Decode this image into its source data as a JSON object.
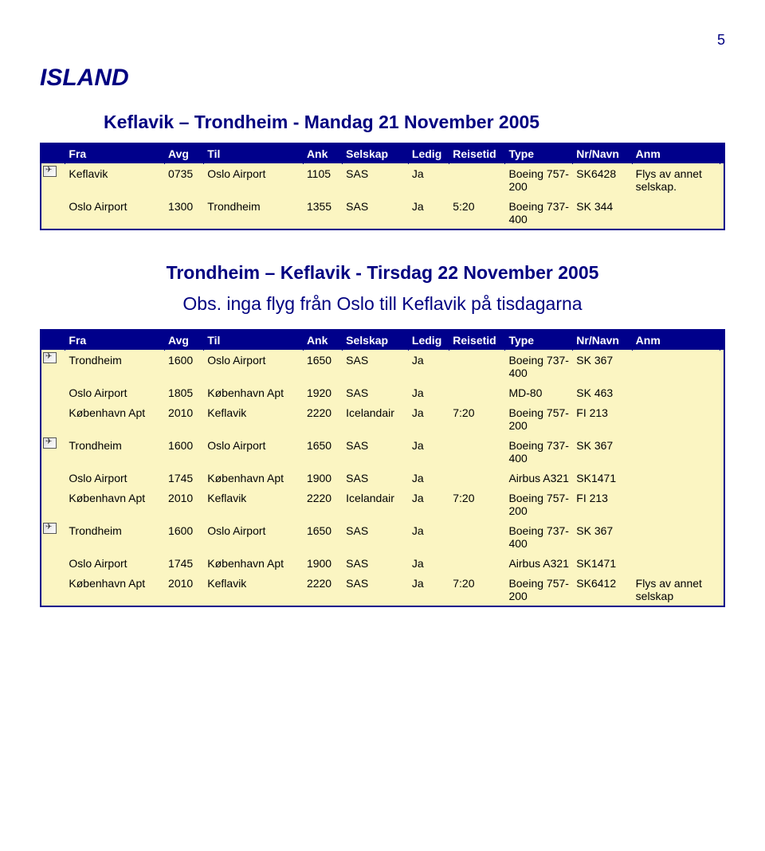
{
  "page_number": "5",
  "section_title": "ISLAND",
  "block1": {
    "route_title": "Keflavik – Trondheim - Mandag 21 November 2005",
    "headers": [
      "",
      "Fra",
      "Avg",
      "Til",
      "Ank",
      "Selskap",
      "Ledig",
      "Reisetid",
      "Type",
      "Nr/Navn",
      "Anm",
      ""
    ],
    "rows": [
      {
        "icon": true,
        "fra": "Keflavik",
        "avg": "0735",
        "til": "Oslo Airport",
        "ank": "1105",
        "selskap": "SAS",
        "ledig": "Ja",
        "reisetid": "",
        "type": "Boeing 757-200",
        "nr": "SK6428",
        "anm": "Flys av annet selskap."
      },
      {
        "icon": false,
        "fra": "Oslo Airport",
        "avg": "1300",
        "til": "Trondheim",
        "ank": "1355",
        "selskap": "SAS",
        "ledig": "Ja",
        "reisetid": "5:20",
        "type": "Boeing 737-400",
        "nr": "SK 344",
        "anm": ""
      }
    ]
  },
  "block2": {
    "route_title": "Trondheim – Keflavik - Tirsdag 22 November 2005",
    "note": "Obs. inga flyg från Oslo till Keflavik på tisdagarna",
    "headers": [
      "",
      "Fra",
      "Avg",
      "Til",
      "Ank",
      "Selskap",
      "Ledig",
      "Reisetid",
      "Type",
      "Nr/Navn",
      "Anm",
      ""
    ],
    "rows": [
      {
        "icon": true,
        "fra": "Trondheim",
        "avg": "1600",
        "til": "Oslo Airport",
        "ank": "1650",
        "selskap": "SAS",
        "ledig": "Ja",
        "reisetid": "",
        "type": "Boeing 737-400",
        "nr": "SK 367",
        "anm": ""
      },
      {
        "icon": false,
        "fra": "Oslo Airport",
        "avg": "1805",
        "til": "København Apt",
        "ank": "1920",
        "selskap": "SAS",
        "ledig": "Ja",
        "reisetid": "",
        "type": "MD-80",
        "nr": "SK 463",
        "anm": ""
      },
      {
        "icon": false,
        "fra": "København Apt",
        "avg": "2010",
        "til": "Keflavik",
        "ank": "2220",
        "selskap": "Icelandair",
        "ledig": "Ja",
        "reisetid": "7:20",
        "type": "Boeing 757-200",
        "nr": "FI 213",
        "anm": ""
      },
      {
        "icon": true,
        "fra": "Trondheim",
        "avg": "1600",
        "til": "Oslo Airport",
        "ank": "1650",
        "selskap": "SAS",
        "ledig": "Ja",
        "reisetid": "",
        "type": "Boeing 737-400",
        "nr": "SK 367",
        "anm": ""
      },
      {
        "icon": false,
        "fra": "Oslo Airport",
        "avg": "1745",
        "til": "København Apt",
        "ank": "1900",
        "selskap": "SAS",
        "ledig": "Ja",
        "reisetid": "",
        "type": "Airbus A321",
        "nr": "SK1471",
        "anm": ""
      },
      {
        "icon": false,
        "fra": "København Apt",
        "avg": "2010",
        "til": "Keflavik",
        "ank": "2220",
        "selskap": "Icelandair",
        "ledig": "Ja",
        "reisetid": "7:20",
        "type": "Boeing 757-200",
        "nr": "FI 213",
        "anm": ""
      },
      {
        "icon": true,
        "fra": "Trondheim",
        "avg": "1600",
        "til": "Oslo Airport",
        "ank": "1650",
        "selskap": "SAS",
        "ledig": "Ja",
        "reisetid": "",
        "type": "Boeing 737-400",
        "nr": "SK 367",
        "anm": ""
      },
      {
        "icon": false,
        "fra": "Oslo Airport",
        "avg": "1745",
        "til": "København Apt",
        "ank": "1900",
        "selskap": "SAS",
        "ledig": "Ja",
        "reisetid": "",
        "type": "Airbus A321",
        "nr": "SK1471",
        "anm": ""
      },
      {
        "icon": false,
        "fra": "København Apt",
        "avg": "2010",
        "til": "Keflavik",
        "ank": "2220",
        "selskap": "SAS",
        "ledig": "Ja",
        "reisetid": "7:20",
        "type": "Boeing 757-200",
        "nr": "SK6412",
        "anm": "Flys av annet selskap"
      }
    ]
  },
  "col_widths": {
    "icon": "20px",
    "fra": "110px",
    "avg": "38px",
    "til": "110px",
    "ank": "38px",
    "selskap": "70px",
    "ledig": "40px",
    "reisetid": "58px",
    "type": "72px",
    "nr": "62px",
    "anm": "96px"
  }
}
